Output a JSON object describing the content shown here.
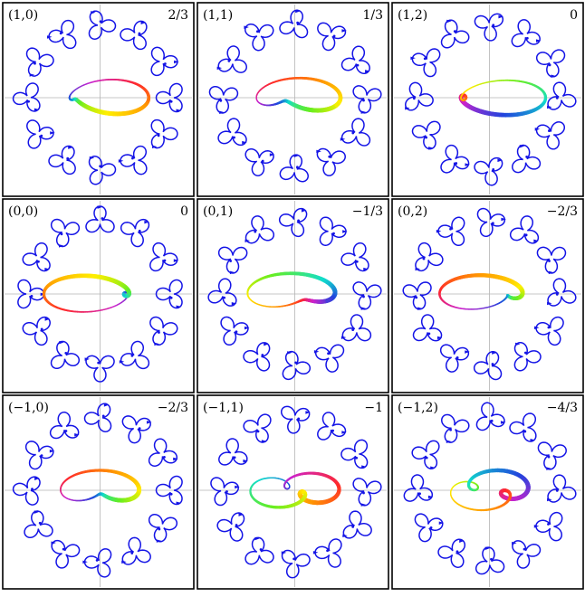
{
  "figure": {
    "panels": [
      {
        "index_label": "(1,0)",
        "value_label": "2/3",
        "index": [
          1,
          0
        ]
      },
      {
        "index_label": "(1,1)",
        "value_label": "1/3",
        "index": [
          1,
          1
        ]
      },
      {
        "index_label": "(1,2)",
        "value_label": "0",
        "index": [
          1,
          2
        ]
      },
      {
        "index_label": "(0,0)",
        "value_label": "0",
        "index": [
          0,
          0
        ]
      },
      {
        "index_label": "(0,1)",
        "value_label": "−1/3",
        "index": [
          0,
          1
        ]
      },
      {
        "index_label": "(0,2)",
        "value_label": "−2/3",
        "index": [
          0,
          2
        ]
      },
      {
        "index_label": "(−1,0)",
        "value_label": "−2/3",
        "index": [
          -1,
          0
        ]
      },
      {
        "index_label": "(−1,1)",
        "value_label": "−1",
        "index": [
          -1,
          1
        ]
      },
      {
        "index_label": "(−1,2)",
        "value_label": "−4/3",
        "index": [
          -1,
          2
        ]
      }
    ],
    "petal_count": 3,
    "ring_glyph_count": 12,
    "colors": {
      "glyph": "#1414e6",
      "axis": "#b4b4b4",
      "border": "#000000",
      "knot_gradient": [
        "#ff2a2a",
        "#ff9900",
        "#ffee00",
        "#66ee22",
        "#11ddcc",
        "#2244dd",
        "#cc22cc"
      ]
    }
  }
}
